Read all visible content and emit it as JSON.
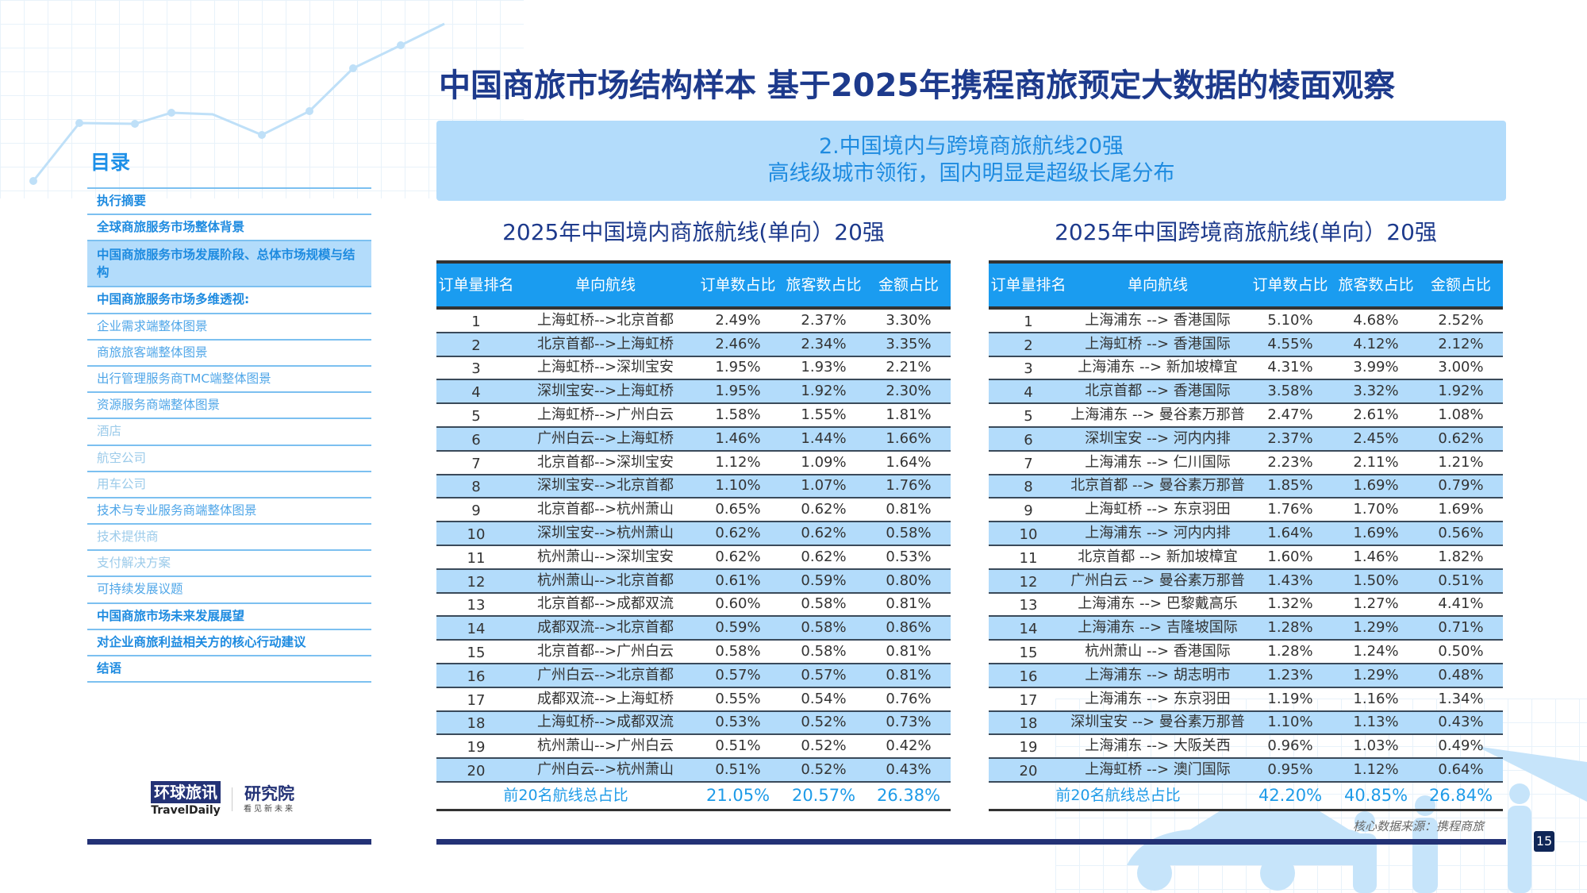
{
  "title": "中国商旅市场结构样本 基于2025年携程商旅预定大数据的棱面观察",
  "banner": {
    "line1": "2.中国境内与跨境商旅航线20强",
    "line2": "高线级城市领衔，国内明显是超级长尾分布"
  },
  "sidebar": {
    "title": "目录",
    "items": [
      {
        "label": "执行摘要",
        "level": 1
      },
      {
        "label": "全球商旅服务市场整体背景",
        "level": 1
      },
      {
        "label": "中国商旅服务市场发展阶段、总体市场规模与结构",
        "level": 1,
        "active": true
      },
      {
        "label": "中国商旅服务市场多维透视:",
        "level": 1
      },
      {
        "label": "企业需求端整体图景",
        "level": 2
      },
      {
        "label": "商旅旅客端整体图景",
        "level": 2
      },
      {
        "label": "出行管理服务商TMC端整体图景",
        "level": 2
      },
      {
        "label": "资源服务商端整体图景",
        "level": 2
      },
      {
        "label": "酒店",
        "level": 3
      },
      {
        "label": "航空公司",
        "level": 3
      },
      {
        "label": "用车公司",
        "level": 3
      },
      {
        "label": "技术与专业服务商端整体图景",
        "level": 2
      },
      {
        "label": "技术提供商",
        "level": 3
      },
      {
        "label": "支付解决方案",
        "level": 3
      },
      {
        "label": "可持续发展议题",
        "level": 2
      },
      {
        "label": "中国商旅市场未来发展展望",
        "level": 1
      },
      {
        "label": "对企业商旅利益相关方的核心行动建议",
        "level": 1
      },
      {
        "label": "结语",
        "level": 1
      }
    ]
  },
  "headers": [
    "订单量排名",
    "单向航线",
    "订单数占比",
    "旅客数占比",
    "金额占比"
  ],
  "domestic": {
    "title": "2025年中国境内商旅航线(单向）20强",
    "rows": [
      [
        "1",
        "上海虹桥-->北京首都",
        "2.49%",
        "2.37%",
        "3.30%"
      ],
      [
        "2",
        "北京首都-->上海虹桥",
        "2.46%",
        "2.34%",
        "3.35%"
      ],
      [
        "3",
        "上海虹桥-->深圳宝安",
        "1.95%",
        "1.93%",
        "2.21%"
      ],
      [
        "4",
        "深圳宝安-->上海虹桥",
        "1.95%",
        "1.92%",
        "2.30%"
      ],
      [
        "5",
        "上海虹桥-->广州白云",
        "1.58%",
        "1.55%",
        "1.81%"
      ],
      [
        "6",
        "广州白云-->上海虹桥",
        "1.46%",
        "1.44%",
        "1.66%"
      ],
      [
        "7",
        "北京首都-->深圳宝安",
        "1.12%",
        "1.09%",
        "1.64%"
      ],
      [
        "8",
        "深圳宝安-->北京首都",
        "1.10%",
        "1.07%",
        "1.76%"
      ],
      [
        "9",
        "北京首都-->杭州萧山",
        "0.65%",
        "0.62%",
        "0.81%"
      ],
      [
        "10",
        "深圳宝安-->杭州萧山",
        "0.62%",
        "0.62%",
        "0.58%"
      ],
      [
        "11",
        "杭州萧山-->深圳宝安",
        "0.62%",
        "0.62%",
        "0.53%"
      ],
      [
        "12",
        "杭州萧山-->北京首都",
        "0.61%",
        "0.59%",
        "0.80%"
      ],
      [
        "13",
        "北京首都-->成都双流",
        "0.60%",
        "0.58%",
        "0.81%"
      ],
      [
        "14",
        "成都双流-->北京首都",
        "0.59%",
        "0.58%",
        "0.86%"
      ],
      [
        "15",
        "北京首都-->广州白云",
        "0.58%",
        "0.58%",
        "0.81%"
      ],
      [
        "16",
        "广州白云-->北京首都",
        "0.57%",
        "0.57%",
        "0.81%"
      ],
      [
        "17",
        "成都双流-->上海虹桥",
        "0.55%",
        "0.54%",
        "0.76%"
      ],
      [
        "18",
        "上海虹桥-->成都双流",
        "0.53%",
        "0.52%",
        "0.73%"
      ],
      [
        "19",
        "杭州萧山-->广州白云",
        "0.51%",
        "0.52%",
        "0.42%"
      ],
      [
        "20",
        "广州白云-->杭州萧山",
        "0.51%",
        "0.52%",
        "0.43%"
      ]
    ],
    "total": {
      "label": "前20名航线总占比",
      "orders": "21.05%",
      "passengers": "20.57%",
      "amount": "26.38%"
    }
  },
  "cross": {
    "title": "2025年中国跨境商旅航线(单向）20强",
    "rows": [
      [
        "1",
        "上海浦东 --> 香港国际",
        "5.10%",
        "4.68%",
        "2.52%"
      ],
      [
        "2",
        "上海虹桥 --> 香港国际",
        "4.55%",
        "4.12%",
        "2.12%"
      ],
      [
        "3",
        "上海浦东 --> 新加坡樟宜",
        "4.31%",
        "3.99%",
        "3.00%"
      ],
      [
        "4",
        "北京首都 --> 香港国际",
        "3.58%",
        "3.32%",
        "1.92%"
      ],
      [
        "5",
        "上海浦东 --> 曼谷素万那普",
        "2.47%",
        "2.61%",
        "1.08%"
      ],
      [
        "6",
        "深圳宝安 --> 河内内排",
        "2.37%",
        "2.45%",
        "0.62%"
      ],
      [
        "7",
        "上海浦东 --> 仁川国际",
        "2.23%",
        "2.11%",
        "1.21%"
      ],
      [
        "8",
        "北京首都 --> 曼谷素万那普",
        "1.85%",
        "1.69%",
        "0.79%"
      ],
      [
        "9",
        "上海虹桥 --> 东京羽田",
        "1.76%",
        "1.70%",
        "1.69%"
      ],
      [
        "10",
        "上海浦东 --> 河内内排",
        "1.64%",
        "1.69%",
        "0.56%"
      ],
      [
        "11",
        "北京首都 --> 新加坡樟宜",
        "1.60%",
        "1.46%",
        "1.82%"
      ],
      [
        "12",
        "广州白云 --> 曼谷素万那普",
        "1.43%",
        "1.50%",
        "0.51%"
      ],
      [
        "13",
        "上海浦东 --> 巴黎戴高乐",
        "1.32%",
        "1.27%",
        "4.41%"
      ],
      [
        "14",
        "上海浦东 --> 吉隆坡国际",
        "1.28%",
        "1.29%",
        "0.71%"
      ],
      [
        "15",
        "杭州萧山 --> 香港国际",
        "1.28%",
        "1.24%",
        "0.50%"
      ],
      [
        "16",
        "上海浦东 --> 胡志明市",
        "1.23%",
        "1.29%",
        "0.48%"
      ],
      [
        "17",
        "上海浦东 --> 东京羽田",
        "1.19%",
        "1.16%",
        "1.34%"
      ],
      [
        "18",
        "深圳宝安 --> 曼谷素万那普",
        "1.10%",
        "1.13%",
        "0.43%"
      ],
      [
        "19",
        "上海浦东 --> 大阪关西",
        "0.96%",
        "1.03%",
        "0.49%"
      ],
      [
        "20",
        "上海虹桥 --> 澳门国际",
        "0.95%",
        "1.12%",
        "0.64%"
      ]
    ],
    "total": {
      "label": "前20名航线总占比",
      "orders": "42.20%",
      "passengers": "40.85%",
      "amount": "26.84%"
    }
  },
  "source": "核心数据来源：携程商旅",
  "page_number": "15",
  "logo": {
    "brand": "环球旅讯",
    "brand_en": "TravelDaily",
    "institute": "研究院",
    "slogan": "看见新未来"
  },
  "colors": {
    "header_blue": "#1a9cf0",
    "row_alt": "#b3dcfb",
    "title_navy": "#1d3a8c",
    "bar_navy": "#233276"
  }
}
